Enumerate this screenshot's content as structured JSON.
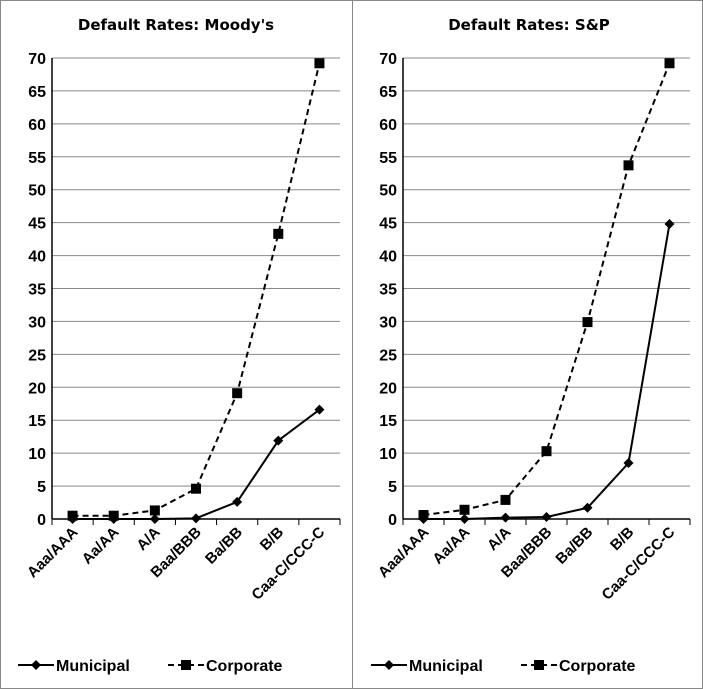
{
  "chart_data": [
    {
      "type": "line",
      "title": "Default Rates: Moody's",
      "categories": [
        "Aaa/AAA",
        "Aa/AA",
        "A/A",
        "Baa/BBB",
        "Ba/BB",
        "B/B",
        "Caa-C/CCC-C"
      ],
      "ylim": [
        0,
        70
      ],
      "yticks": [
        0,
        5,
        10,
        15,
        20,
        25,
        30,
        35,
        40,
        45,
        50,
        55,
        60,
        65,
        70
      ],
      "grid": true,
      "legend": "bottom",
      "series": [
        {
          "name": "Municipal",
          "style": "solid",
          "marker": "diamond",
          "values": [
            0,
            0,
            0,
            0.1,
            2.6,
            11.9,
            16.6
          ]
        },
        {
          "name": "Corporate",
          "style": "dashed",
          "marker": "square",
          "values": [
            0.5,
            0.5,
            1.3,
            4.6,
            19.1,
            43.3,
            69.2
          ]
        }
      ]
    },
    {
      "type": "line",
      "title": "Default Rates: S&P",
      "categories": [
        "Aaa/AAA",
        "Aa/AA",
        "A/A",
        "Baa/BBB",
        "Ba/BB",
        "B/B",
        "Caa-C/CCC-C"
      ],
      "ylim": [
        0,
        70
      ],
      "yticks": [
        0,
        5,
        10,
        15,
        20,
        25,
        30,
        35,
        40,
        45,
        50,
        55,
        60,
        65,
        70
      ],
      "grid": true,
      "legend": "bottom",
      "series": [
        {
          "name": "Municipal",
          "style": "solid",
          "marker": "diamond",
          "values": [
            0,
            0,
            0.2,
            0.3,
            1.7,
            8.5,
            44.8
          ]
        },
        {
          "name": "Corporate",
          "style": "dashed",
          "marker": "square",
          "values": [
            0.6,
            1.4,
            2.9,
            10.3,
            29.9,
            53.7,
            69.2
          ]
        }
      ]
    }
  ]
}
